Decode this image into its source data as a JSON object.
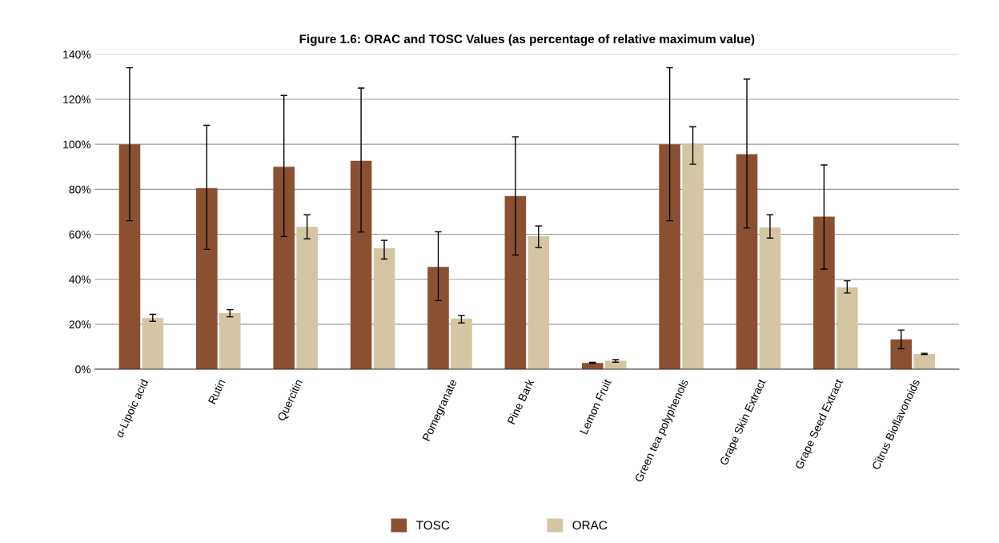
{
  "chart_data": {
    "type": "bar",
    "title": "Figure 1.6: ORAC and TOSC Values (as percentage of relative maximum value)",
    "categories": [
      "α-Lipoic acid",
      "Rutin",
      "Quercitin",
      null,
      "Pomegranate",
      "Pine Bark",
      "Lemon Fruit",
      "Green tea polyphenols",
      "Grape Skin Extract",
      "Grape Seed Extract",
      "Citrus Bioflavonoids"
    ],
    "series": [
      {
        "name": "TOSC",
        "color": "#8b5032",
        "values": [
          100,
          80.5,
          90,
          92.7,
          45.5,
          77,
          2.8,
          100,
          95.6,
          67.8,
          13.3
        ],
        "errors": [
          [
            66,
            134
          ],
          [
            53.3,
            108.4
          ],
          [
            59,
            121.7
          ],
          [
            61,
            125
          ],
          [
            30.5,
            61.1
          ],
          [
            50.8,
            103.3
          ],
          [
            2.6,
            3.1
          ],
          [
            66,
            134
          ],
          [
            62.8,
            129
          ],
          [
            44.5,
            90.8
          ],
          [
            9.1,
            17.4
          ]
        ]
      },
      {
        "name": "ORAC",
        "color": "#d4c6a2",
        "values": [
          22.7,
          25,
          63.3,
          53.8,
          22.5,
          59.2,
          3.8,
          100,
          63,
          36.4,
          6.8
        ],
        "errors": [
          [
            21.3,
            24.4
          ],
          [
            23.3,
            26.5
          ],
          [
            58,
            68.7
          ],
          [
            49,
            57.3
          ],
          [
            20.6,
            23.9
          ],
          [
            54.1,
            63.7
          ],
          [
            3.1,
            4.3
          ],
          [
            91.1,
            107.8
          ],
          [
            58.3,
            68.7
          ],
          [
            33.9,
            39.3
          ],
          [
            6.6,
            7.1
          ]
        ]
      }
    ],
    "ylim": [
      0,
      140
    ],
    "yticks": [
      {
        "value": 0,
        "label": "0%"
      },
      {
        "value": 20,
        "label": "20%"
      },
      {
        "value": 40,
        "label": "40%"
      },
      {
        "value": 60,
        "label": "60%"
      },
      {
        "value": 80,
        "label": "80%"
      },
      {
        "value": 100,
        "label": "100%"
      },
      {
        "value": 120,
        "label": "120%"
      },
      {
        "value": 140,
        "label": "140%"
      }
    ],
    "grid": "y",
    "legend": "bottom"
  }
}
